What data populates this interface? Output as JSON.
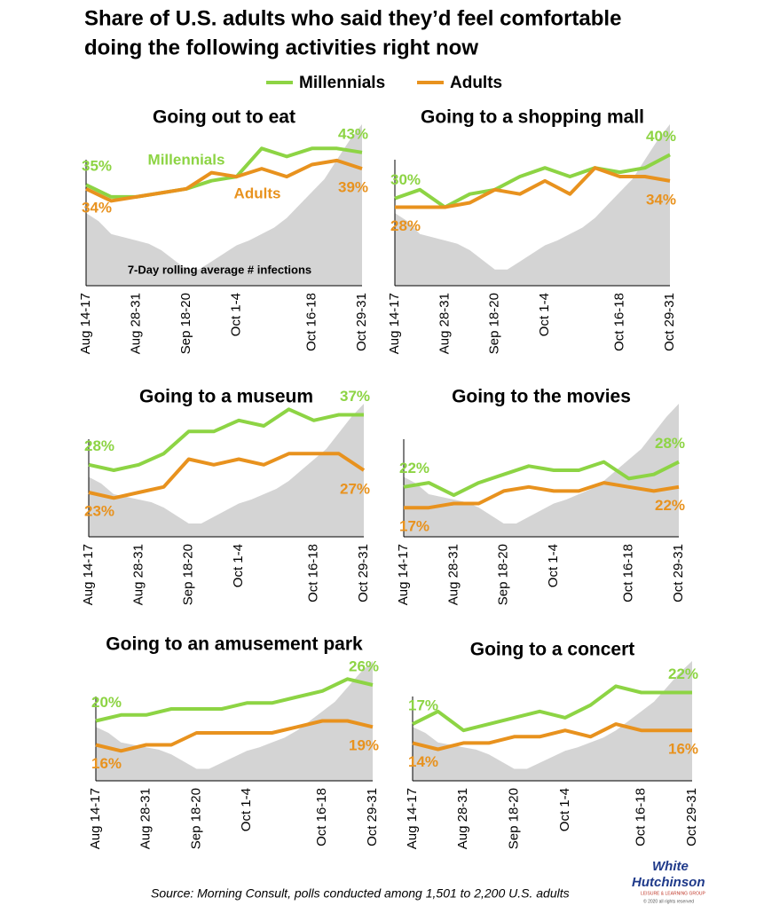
{
  "title": "Share of U.S. adults who said they’d feel comfortable doing the following activities right now",
  "title_lines": [
    "Share of U.S. adults who said they’d feel comfortable",
    "doing the following activities right now"
  ],
  "source": "Source: Morning Consult, polls conducted among 1,501 to 2,200 U.S. adults",
  "logo": {
    "line1": "White",
    "line2": "Hutchinson",
    "tagline": "LEISURE & LEARNING GROUP",
    "copyright": "© 2020 all rights reserved"
  },
  "chart_data": [
    {
      "type": "line",
      "title": "Going out to eat",
      "annotation": "7-Day rolling average # infections",
      "categories": [
        "Aug 14-17",
        null,
        "Aug 28-31",
        null,
        "Sep 18-20",
        null,
        "Oct 1-4",
        null,
        null,
        "Oct 16-18",
        null,
        "Oct 29-31"
      ],
      "ylim": [
        10,
        50
      ],
      "series": [
        {
          "name": "Millennials",
          "color": "#8dd444",
          "values": [
            35,
            32,
            32,
            33,
            34,
            36,
            37,
            44,
            42,
            44,
            44,
            43
          ],
          "value_labels": [
            "35%",
            null,
            null,
            null,
            null,
            null,
            null,
            null,
            null,
            null,
            null,
            "43%"
          ]
        },
        {
          "name": "Adults",
          "color": "#e8921e",
          "values": [
            34,
            31,
            32,
            33,
            34,
            38,
            37,
            39,
            37,
            40,
            41,
            39
          ],
          "value_labels": [
            "34%",
            null,
            null,
            null,
            null,
            null,
            null,
            null,
            null,
            null,
            null,
            "39%"
          ]
        }
      ]
    },
    {
      "type": "line",
      "title": "Going to a shopping mall",
      "categories": [
        "Aug 14-17",
        null,
        "Aug 28-31",
        null,
        "Sep 18-20",
        null,
        "Oct 1-4",
        null,
        null,
        "Oct 16-18",
        null,
        "Oct 29-31"
      ],
      "ylim": [
        10,
        47
      ],
      "series": [
        {
          "name": "Millennials",
          "color": "#8dd444",
          "values": [
            30,
            32,
            28,
            31,
            32,
            35,
            37,
            35,
            37,
            36,
            37,
            40
          ],
          "value_labels": [
            "30%",
            null,
            null,
            null,
            null,
            null,
            null,
            null,
            null,
            null,
            null,
            "40%"
          ]
        },
        {
          "name": "Adults",
          "color": "#e8921e",
          "values": [
            28,
            28,
            28,
            29,
            32,
            31,
            34,
            31,
            37,
            35,
            35,
            34
          ],
          "value_labels": [
            "28%",
            null,
            null,
            null,
            null,
            null,
            null,
            null,
            null,
            null,
            null,
            "34%"
          ]
        }
      ]
    },
    {
      "type": "line",
      "title": "Going to a museum",
      "categories": [
        "Aug 14-17",
        null,
        "Aug 28-31",
        null,
        "Sep 18-20",
        null,
        "Oct 1-4",
        null,
        null,
        "Oct 16-18",
        null,
        "Oct 29-31"
      ],
      "ylim": [
        15,
        39
      ],
      "series": [
        {
          "name": "Millennials",
          "color": "#8dd444",
          "values": [
            28,
            27,
            28,
            30,
            34,
            34,
            36,
            35,
            38,
            36,
            37,
            37
          ],
          "value_labels": [
            "28%",
            null,
            null,
            null,
            null,
            null,
            null,
            null,
            null,
            null,
            null,
            "37%"
          ]
        },
        {
          "name": "Adults",
          "color": "#e8921e",
          "values": [
            23,
            22,
            23,
            24,
            29,
            28,
            29,
            28,
            30,
            30,
            30,
            27
          ],
          "value_labels": [
            "23%",
            null,
            null,
            null,
            null,
            null,
            null,
            null,
            null,
            null,
            null,
            "27%"
          ]
        }
      ]
    },
    {
      "type": "line",
      "title": "Going to the movies",
      "categories": [
        "Aug 14-17",
        null,
        "Aug 28-31",
        null,
        "Sep 18-20",
        null,
        "Oct 1-4",
        null,
        null,
        "Oct 16-18",
        null,
        "Oct 29-31"
      ],
      "ylim": [
        10,
        42
      ],
      "series": [
        {
          "name": "Millennials",
          "color": "#8dd444",
          "values": [
            22,
            23,
            20,
            23,
            25,
            27,
            26,
            26,
            28,
            24,
            25,
            28
          ],
          "value_labels": [
            "22%",
            null,
            null,
            null,
            null,
            null,
            null,
            null,
            null,
            null,
            null,
            "28%"
          ]
        },
        {
          "name": "Adults",
          "color": "#e8921e",
          "values": [
            17,
            17,
            18,
            18,
            21,
            22,
            21,
            21,
            23,
            22,
            21,
            22
          ],
          "value_labels": [
            "17%",
            null,
            null,
            null,
            null,
            null,
            null,
            null,
            null,
            null,
            null,
            "22%"
          ]
        }
      ]
    },
    {
      "type": "line",
      "title": "Going to an amusement park",
      "categories": [
        "Aug 14-17",
        null,
        "Aug 28-31",
        null,
        "Sep 18-20",
        null,
        "Oct 1-4",
        null,
        null,
        "Oct 16-18",
        null,
        "Oct 29-31"
      ],
      "ylim": [
        10,
        30
      ],
      "series": [
        {
          "name": "Millennials",
          "color": "#8dd444",
          "values": [
            20,
            21,
            21,
            22,
            22,
            22,
            23,
            23,
            24,
            25,
            27,
            26
          ],
          "value_labels": [
            "20%",
            null,
            null,
            null,
            null,
            null,
            null,
            null,
            null,
            null,
            null,
            "26%"
          ]
        },
        {
          "name": "Adults",
          "color": "#e8921e",
          "values": [
            16,
            15,
            16,
            16,
            18,
            18,
            18,
            18,
            19,
            20,
            20,
            19
          ],
          "value_labels": [
            "16%",
            null,
            null,
            null,
            null,
            null,
            null,
            null,
            null,
            null,
            null,
            "19%"
          ]
        }
      ]
    },
    {
      "type": "line",
      "title": "Going to a concert",
      "categories": [
        "Aug 14-17",
        null,
        "Aug 28-31",
        null,
        "Sep 18-20",
        null,
        "Oct 1-4",
        null,
        null,
        "Oct 16-18",
        null,
        "Oct 29-31"
      ],
      "ylim": [
        8,
        27
      ],
      "series": [
        {
          "name": "Millennials",
          "color": "#8dd444",
          "values": [
            17,
            19,
            16,
            17,
            18,
            19,
            18,
            20,
            23,
            22,
            22,
            22
          ],
          "value_labels": [
            "17%",
            null,
            null,
            null,
            null,
            null,
            null,
            null,
            null,
            null,
            null,
            "22%"
          ]
        },
        {
          "name": "Adults",
          "color": "#e8921e",
          "values": [
            14,
            13,
            14,
            14,
            15,
            15,
            16,
            15,
            17,
            16,
            16,
            16
          ],
          "value_labels": [
            "14%",
            null,
            null,
            null,
            null,
            null,
            null,
            null,
            null,
            null,
            null,
            "16%"
          ]
        }
      ]
    }
  ]
}
